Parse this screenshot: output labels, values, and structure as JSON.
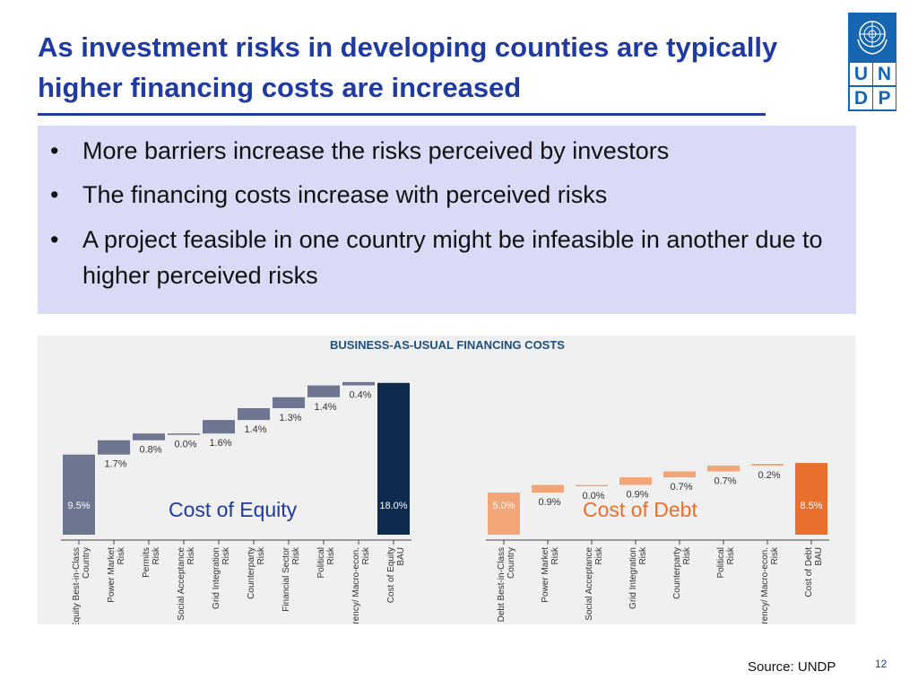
{
  "slide": {
    "title": "As investment risks in developing counties are typically higher financing costs are increased",
    "bullets": [
      "More barriers increase the risks perceived by investors",
      "The financing costs increase with perceived risks",
      "A project feasible in one country might be infeasible in another due to higher perceived risks"
    ],
    "bullet_glyph": "•",
    "source": "Source: UNDP",
    "page_number": "12",
    "logo_letters": [
      "U",
      "N",
      "D",
      "P"
    ],
    "colors": {
      "title": "#1f3aa0",
      "bullet_box": "#d9daf6",
      "logo": "#1565b0"
    }
  },
  "chart_data": [
    {
      "type": "bar",
      "subtype": "waterfall",
      "title": "BUSINESS-AS-USUAL FINANCING COSTS",
      "overlay_label": "Cost of Equity",
      "categories": [
        "Cost of Equity Best-in-Class Country",
        "Power Market Risk",
        "Permits Risk",
        "Social Acceptance Risk",
        "Grid Integration Risk",
        "Counterparty Risk",
        "Financial Sector Risk",
        "Political Risk",
        "Currency/ Macro-econ. Risk",
        "Cost of Equity BAU"
      ],
      "values": [
        9.5,
        1.7,
        0.8,
        0.0,
        1.6,
        1.4,
        1.3,
        1.4,
        0.4,
        18.0
      ],
      "value_labels": [
        "9.5%",
        "1.7%",
        "0.8%",
        "0.0%",
        "1.6%",
        "1.4%",
        "1.3%",
        "1.4%",
        "0.4%",
        "18.0%"
      ],
      "kinds": [
        "total",
        "delta",
        "delta",
        "delta",
        "delta",
        "delta",
        "delta",
        "delta",
        "delta",
        "total"
      ],
      "ylim": [
        0,
        18.0
      ],
      "colors": {
        "base": "#6e7590",
        "increment": "#6e7590",
        "final": "#0e2a4f",
        "label": "#1f3aa0"
      }
    },
    {
      "type": "bar",
      "subtype": "waterfall",
      "title": "",
      "overlay_label": "Cost of Debt",
      "categories": [
        "Cost of Debt Best-in-Class Country",
        "Power Market Risk",
        "Social Acceptance Risk",
        "Grid Integration Risk",
        "Counterparty Risk",
        "Political Risk",
        "Currency/ Macro-econ. Risk",
        "Cost of Debt BAU"
      ],
      "values": [
        5.0,
        0.9,
        0.0,
        0.9,
        0.7,
        0.7,
        0.2,
        8.5
      ],
      "value_labels": [
        "5.0%",
        "0.9%",
        "0.0%",
        "0.9%",
        "0.7%",
        "0.7%",
        "0.2%",
        "8.5%"
      ],
      "kinds": [
        "total",
        "delta",
        "delta",
        "delta",
        "delta",
        "delta",
        "delta",
        "total"
      ],
      "ylim": [
        0,
        18.0
      ],
      "colors": {
        "base": "#f2a577",
        "increment": "#f2a577",
        "final": "#e8702c",
        "label": "#e8702c"
      }
    }
  ]
}
